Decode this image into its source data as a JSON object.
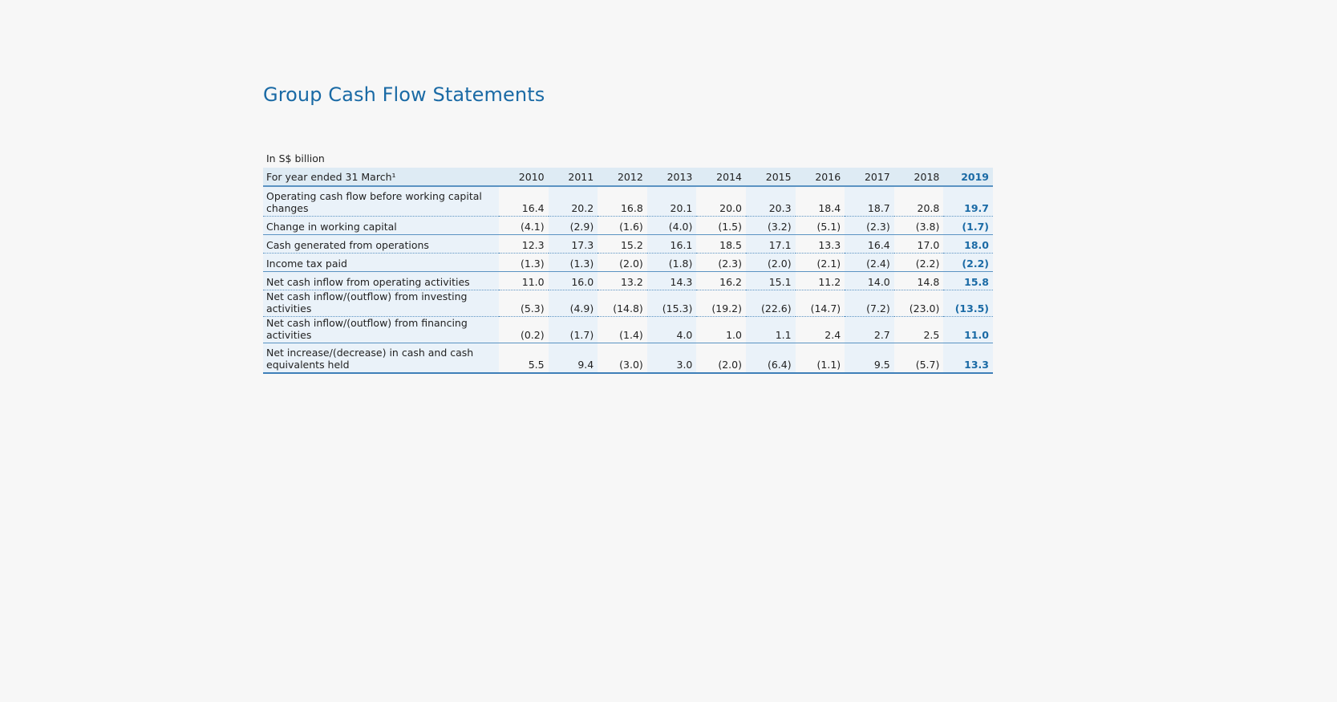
{
  "title": "Group Cash Flow Statements",
  "unit": "In S$ billion",
  "header": {
    "label": "For year ended 31 March¹",
    "years": [
      "2010",
      "2011",
      "2012",
      "2013",
      "2014",
      "2015",
      "2016",
      "2017",
      "2018",
      "2019"
    ]
  },
  "rows": [
    {
      "label": "Operating cash flow before working capital changes",
      "values": [
        "16.4",
        "20.2",
        "16.8",
        "20.1",
        "20.0",
        "20.3",
        "18.4",
        "18.7",
        "20.8",
        "19.7"
      ]
    },
    {
      "label": "Change in working capital",
      "values": [
        "(4.1)",
        "(2.9)",
        "(1.6)",
        "(4.0)",
        "(1.5)",
        "(3.2)",
        "(5.1)",
        "(2.3)",
        "(3.8)",
        "(1.7)"
      ]
    },
    {
      "label": "Cash generated from operations",
      "values": [
        "12.3",
        "17.3",
        "15.2",
        "16.1",
        "18.5",
        "17.1",
        "13.3",
        "16.4",
        "17.0",
        "18.0"
      ]
    },
    {
      "label": "Income tax paid",
      "values": [
        "(1.3)",
        "(1.3)",
        "(2.0)",
        "(1.8)",
        "(2.3)",
        "(2.0)",
        "(2.1)",
        "(2.4)",
        "(2.2)",
        "(2.2)"
      ]
    },
    {
      "label": "Net cash inflow from operating activities",
      "values": [
        "11.0",
        "16.0",
        "13.2",
        "14.3",
        "16.2",
        "15.1",
        "11.2",
        "14.0",
        "14.8",
        "15.8"
      ]
    },
    {
      "label": "Net cash inflow/(outflow) from investing activities",
      "values": [
        "(5.3)",
        "(4.9)",
        "(14.8)",
        "(15.3)",
        "(19.2)",
        "(22.6)",
        "(14.7)",
        "(7.2)",
        "(23.0)",
        "(13.5)"
      ]
    },
    {
      "label": "Net cash inflow/(outflow) from financing activities",
      "values": [
        "(0.2)",
        "(1.7)",
        "(1.4)",
        "4.0",
        "1.0",
        "1.1",
        "2.4",
        "2.7",
        "2.5",
        "11.0"
      ]
    },
    {
      "label": "Net increase/(decrease) in cash and cash equivalents held",
      "values": [
        "5.5",
        "9.4",
        "(3.0)",
        "3.0",
        "(2.0)",
        "(6.4)",
        "(1.1)",
        "9.5",
        "(5.7)",
        "13.3"
      ]
    }
  ],
  "colors": {
    "accent": "#1a6aa5",
    "header_bg": "#deebf4",
    "shade": "#eaf2f9",
    "rule": "#5b93c2"
  }
}
